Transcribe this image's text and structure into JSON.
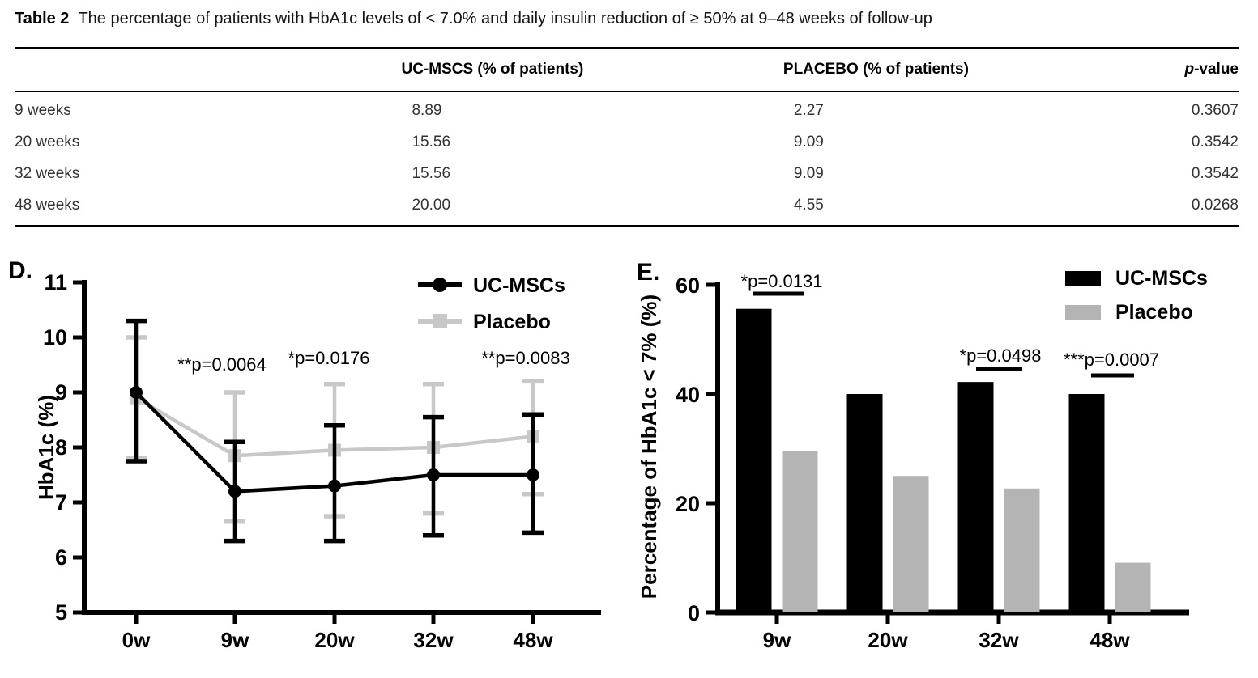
{
  "table": {
    "title_prefix": "Table 2",
    "title_text": "The percentage of patients with HbA1c levels of < 7.0% and daily insulin reduction of ≥ 50% at 9–48 weeks of follow-up",
    "headers": {
      "label": "",
      "ucmscs": "UC-MSCS (% of patients)",
      "placebo": "PLACEBO (% of patients)",
      "p_italic": "p",
      "p_rest": "-value"
    },
    "rows": [
      {
        "label": "9 weeks",
        "ucmscs": "8.89",
        "placebo": "2.27",
        "p": "0.3607"
      },
      {
        "label": "20 weeks",
        "ucmscs": "15.56",
        "placebo": "9.09",
        "p": "0.3542"
      },
      {
        "label": "32 weeks",
        "ucmscs": "15.56",
        "placebo": "9.09",
        "p": "0.3542"
      },
      {
        "label": "48 weeks",
        "ucmscs": "20.00",
        "placebo": "4.55",
        "p": "0.0268"
      }
    ]
  },
  "colors": {
    "black": "#000000",
    "placebo_line_gray": "#c8c8c8",
    "placebo_bar_gray": "#b4b4b4"
  },
  "chart_data": [
    {
      "id": "D",
      "type": "line",
      "panel_label": "D.",
      "ylabel": "HbA1c (%)",
      "xlabel": "",
      "ylim": [
        5,
        11
      ],
      "yticks": [
        5,
        6,
        7,
        8,
        9,
        10,
        11
      ],
      "categories": [
        "0w",
        "9w",
        "20w",
        "32w",
        "48w"
      ],
      "grid": false,
      "legend_position": "top-right",
      "series": [
        {
          "name": "UC-MSCs",
          "color": "#000000",
          "marker": "circle",
          "values": [
            9.0,
            7.2,
            7.3,
            7.5,
            7.5
          ],
          "err_low": [
            7.75,
            6.3,
            6.3,
            6.4,
            6.45
          ],
          "err_high": [
            10.3,
            8.1,
            8.4,
            8.55,
            8.6
          ]
        },
        {
          "name": "Placebo",
          "color": "#c8c8c8",
          "marker": "square",
          "values": [
            8.9,
            7.85,
            7.95,
            8.0,
            8.2
          ],
          "err_low": [
            7.8,
            6.65,
            6.75,
            6.8,
            7.15
          ],
          "err_high": [
            10.0,
            9.0,
            9.15,
            9.15,
            9.2
          ]
        }
      ],
      "annotations": [
        {
          "text": "**p=0.0064",
          "x": 274,
          "y": 158
        },
        {
          "text": "*p=0.0176",
          "x": 406,
          "y": 150
        },
        {
          "text": "**p=0.0083",
          "x": 649,
          "y": 150
        }
      ]
    },
    {
      "id": "E",
      "type": "bar",
      "panel_label": "E.",
      "ylabel": "Percentage of HbA1c < 7% (%)",
      "xlabel": "",
      "ylim": [
        0,
        60
      ],
      "yticks": [
        0,
        20,
        40,
        60
      ],
      "categories": [
        "9w",
        "20w",
        "32w",
        "48w"
      ],
      "grid": false,
      "legend_position": "top-right",
      "series": [
        {
          "name": "UC-MSCs",
          "color": "#000000",
          "values": [
            55.6,
            40.0,
            42.2,
            40.0
          ]
        },
        {
          "name": "Placebo",
          "color": "#b4b4b4",
          "values": [
            29.5,
            25.0,
            22.7,
            9.1
          ]
        }
      ],
      "annotations": [
        {
          "text": "*p=0.0131",
          "x": 185,
          "y": 55,
          "line": [
            150,
            212,
            63
          ]
        },
        {
          "text": "*p=0.0498",
          "x": 455,
          "y": 147,
          "line": [
            425,
            482,
            156
          ]
        },
        {
          "text": "***p=0.0007",
          "x": 592,
          "y": 152,
          "line": [
            567,
            620,
            164
          ]
        }
      ]
    }
  ]
}
